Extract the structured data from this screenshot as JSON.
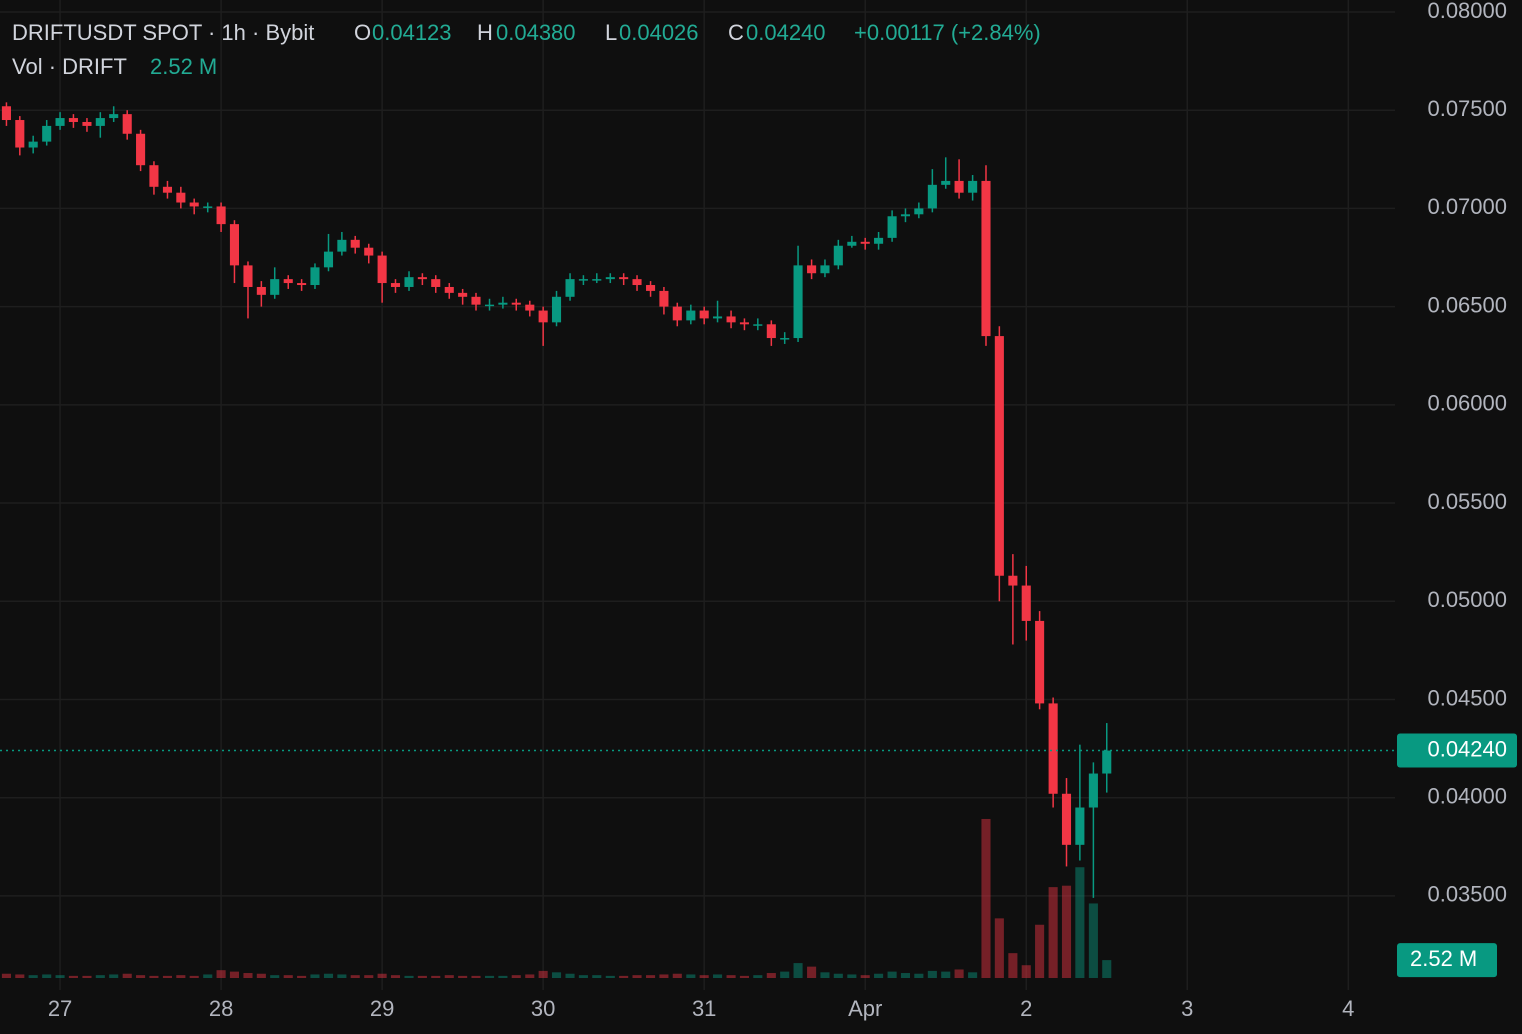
{
  "chart_data": {
    "type": "candlestick",
    "title": "DRIFTUSDT SPOT · 1h · Bybit",
    "ohlc_legend": {
      "open_label": "O",
      "open": {
        "value": 0.04123,
        "label": "0.04123"
      },
      "high_label": "H",
      "high": {
        "value": 0.0438,
        "label": "0.04380"
      },
      "low_label": "L",
      "low": {
        "value": 0.04026,
        "label": "0.04026"
      },
      "close_label": "C",
      "close": {
        "value": 0.0424,
        "label": "0.04240"
      },
      "change": "+0.00117 (+2.84%)"
    },
    "volume_legend": {
      "name": "Vol · DRIFT",
      "value": {
        "value": 2.52,
        "label": "2.52 M"
      }
    },
    "last_price": {
      "value": 0.0424,
      "label": "0.04240"
    },
    "up_color": "#089981",
    "down_color": "#f23645",
    "x": [
      26.667,
      26.75,
      26.833,
      26.917,
      27,
      27.083,
      27.167,
      27.25,
      27.333,
      27.417,
      27.5,
      27.583,
      27.667,
      27.75,
      27.833,
      27.917,
      28,
      28.083,
      28.167,
      28.25,
      28.333,
      28.417,
      28.5,
      28.583,
      28.667,
      28.75,
      28.833,
      28.917,
      29,
      29.083,
      29.167,
      29.25,
      29.333,
      29.417,
      29.5,
      29.583,
      29.667,
      29.75,
      29.833,
      29.917,
      30,
      30.083,
      30.167,
      30.25,
      30.333,
      30.417,
      30.5,
      30.583,
      30.667,
      30.75,
      30.833,
      30.917,
      31,
      31.083,
      31.167,
      31.25,
      31.333,
      31.417,
      31.5,
      31.583,
      31.667,
      31.75,
      31.833,
      31.917,
      32,
      32.083,
      32.167,
      32.25,
      32.333,
      32.417,
      32.5,
      32.583,
      32.667,
      32.75,
      32.833,
      32.917,
      33,
      33.083,
      33.167,
      33.25,
      33.333,
      33.417,
      33.5
    ],
    "open": [
      0.0752,
      0.0745,
      0.0731,
      0.0734,
      0.0742,
      0.0746,
      0.0744,
      0.0742,
      0.0746,
      0.0748,
      0.0738,
      0.0722,
      0.0711,
      0.0708,
      0.0703,
      0.0701,
      0.0701,
      0.0692,
      0.0671,
      0.066,
      0.0656,
      0.0664,
      0.0662,
      0.0661,
      0.067,
      0.0678,
      0.0684,
      0.068,
      0.0676,
      0.0662,
      0.066,
      0.0665,
      0.0664,
      0.066,
      0.0657,
      0.0655,
      0.0651,
      0.0651,
      0.0652,
      0.0651,
      0.0648,
      0.0642,
      0.0655,
      0.0664,
      0.0664,
      0.0664,
      0.0665,
      0.0664,
      0.0661,
      0.0658,
      0.065,
      0.0643,
      0.0648,
      0.0644,
      0.0645,
      0.0642,
      0.0641,
      0.0641,
      0.0634,
      0.0634,
      0.0671,
      0.0667,
      0.0671,
      0.0681,
      0.0683,
      0.0682,
      0.0685,
      0.0696,
      0.0697,
      0.07,
      0.0712,
      0.0714,
      0.0708,
      0.0714,
      0.0635,
      0.0513,
      0.0508,
      0.049,
      0.0448,
      0.0402,
      0.0376,
      0.0395,
      0.04123
    ],
    "high": [
      0.0754,
      0.0747,
      0.0737,
      0.0745,
      0.0749,
      0.0748,
      0.0746,
      0.0749,
      0.0752,
      0.075,
      0.074,
      0.0724,
      0.0714,
      0.0711,
      0.0705,
      0.0703,
      0.0703,
      0.0694,
      0.0673,
      0.0663,
      0.067,
      0.0666,
      0.0664,
      0.0672,
      0.0687,
      0.0688,
      0.0686,
      0.0682,
      0.0678,
      0.0664,
      0.0668,
      0.0667,
      0.0666,
      0.0662,
      0.0659,
      0.0657,
      0.0654,
      0.0655,
      0.0654,
      0.0653,
      0.065,
      0.0658,
      0.0667,
      0.0666,
      0.0667,
      0.0667,
      0.0667,
      0.0666,
      0.0663,
      0.066,
      0.0652,
      0.0651,
      0.065,
      0.0653,
      0.0648,
      0.0644,
      0.0644,
      0.0643,
      0.0637,
      0.0681,
      0.0674,
      0.0674,
      0.0684,
      0.0686,
      0.0685,
      0.0688,
      0.0699,
      0.07,
      0.0703,
      0.072,
      0.0726,
      0.0725,
      0.0717,
      0.0722,
      0.064,
      0.0524,
      0.0518,
      0.0495,
      0.0451,
      0.041,
      0.0427,
      0.0418,
      0.0438
    ],
    "low": [
      0.0742,
      0.0727,
      0.0728,
      0.0732,
      0.074,
      0.0741,
      0.0739,
      0.0736,
      0.0744,
      0.0735,
      0.0719,
      0.0707,
      0.0705,
      0.07,
      0.0697,
      0.0698,
      0.0688,
      0.0662,
      0.0644,
      0.065,
      0.0654,
      0.0659,
      0.0658,
      0.0659,
      0.0668,
      0.0676,
      0.0677,
      0.0672,
      0.0652,
      0.0657,
      0.0658,
      0.0661,
      0.0657,
      0.0654,
      0.0651,
      0.0648,
      0.0648,
      0.0649,
      0.0648,
      0.0645,
      0.063,
      0.064,
      0.0653,
      0.0661,
      0.0662,
      0.0662,
      0.0661,
      0.0658,
      0.0655,
      0.0646,
      0.064,
      0.0641,
      0.0641,
      0.0642,
      0.0639,
      0.0638,
      0.0638,
      0.063,
      0.0631,
      0.0632,
      0.0664,
      0.0665,
      0.0669,
      0.068,
      0.0679,
      0.0679,
      0.0683,
      0.0693,
      0.0695,
      0.0698,
      0.071,
      0.0705,
      0.0704,
      0.063,
      0.05,
      0.0478,
      0.048,
      0.0445,
      0.0395,
      0.0365,
      0.0368,
      0.0349,
      0.04026
    ],
    "close": [
      0.0745,
      0.0731,
      0.0734,
      0.0742,
      0.0746,
      0.0744,
      0.0742,
      0.0746,
      0.0748,
      0.0738,
      0.0722,
      0.0711,
      0.0708,
      0.0703,
      0.0701,
      0.0701,
      0.0692,
      0.0671,
      0.066,
      0.0656,
      0.0664,
      0.0662,
      0.0661,
      0.067,
      0.0678,
      0.0684,
      0.068,
      0.0676,
      0.0662,
      0.066,
      0.0665,
      0.0664,
      0.066,
      0.0657,
      0.0655,
      0.0651,
      0.0651,
      0.0652,
      0.0651,
      0.0648,
      0.0642,
      0.0655,
      0.0664,
      0.0664,
      0.0664,
      0.0665,
      0.0664,
      0.0661,
      0.0658,
      0.065,
      0.0643,
      0.0648,
      0.0644,
      0.0645,
      0.0642,
      0.0641,
      0.0641,
      0.0634,
      0.0634,
      0.0671,
      0.0667,
      0.0671,
      0.0681,
      0.0683,
      0.0682,
      0.0685,
      0.0696,
      0.0697,
      0.07,
      0.0712,
      0.0714,
      0.0708,
      0.0714,
      0.0635,
      0.0513,
      0.0508,
      0.049,
      0.0448,
      0.0402,
      0.0376,
      0.0395,
      0.04123,
      0.0424
    ],
    "volume": [
      0.6,
      0.5,
      0.4,
      0.5,
      0.4,
      0.3,
      0.3,
      0.4,
      0.5,
      0.6,
      0.4,
      0.3,
      0.3,
      0.4,
      0.3,
      0.5,
      1.1,
      0.9,
      0.7,
      0.6,
      0.4,
      0.4,
      0.3,
      0.5,
      0.6,
      0.5,
      0.4,
      0.4,
      0.6,
      0.4,
      0.3,
      0.3,
      0.3,
      0.4,
      0.3,
      0.3,
      0.3,
      0.3,
      0.4,
      0.5,
      1.0,
      0.8,
      0.6,
      0.4,
      0.4,
      0.3,
      0.3,
      0.4,
      0.4,
      0.5,
      0.6,
      0.5,
      0.4,
      0.5,
      0.4,
      0.3,
      0.4,
      0.7,
      0.9,
      2.1,
      1.6,
      0.8,
      0.6,
      0.5,
      0.4,
      0.6,
      0.9,
      0.7,
      0.6,
      1.0,
      0.9,
      1.2,
      0.8,
      22.4,
      8.4,
      3.5,
      1.8,
      7.5,
      12.8,
      13.0,
      15.6,
      10.5,
      2.52
    ],
    "xlim": [
      26.627,
      35.29
    ],
    "xticks": [
      27,
      28,
      29,
      30,
      31,
      {
        "value": 32,
        "label": "Apr"
      },
      {
        "value": 33,
        "label": "2"
      },
      {
        "value": 34,
        "label": "3"
      },
      {
        "value": 35,
        "label": "4"
      }
    ],
    "ylim": [
      0.03021,
      0.08061
    ],
    "yticks": [
      {
        "value": 0.035,
        "label": "0.03500"
      },
      {
        "value": 0.04,
        "label": "0.04000"
      },
      {
        "value": 0.045,
        "label": "0.04500"
      },
      {
        "value": 0.05,
        "label": "0.05000"
      },
      {
        "value": 0.055,
        "label": "0.05500"
      },
      {
        "value": 0.06,
        "label": "0.06000"
      },
      {
        "value": 0.065,
        "label": "0.06500"
      },
      {
        "value": 0.07,
        "label": "0.07000"
      },
      {
        "value": 0.075,
        "label": "0.07500"
      },
      {
        "value": 0.08,
        "label": "0.08000"
      }
    ],
    "grid": true
  }
}
